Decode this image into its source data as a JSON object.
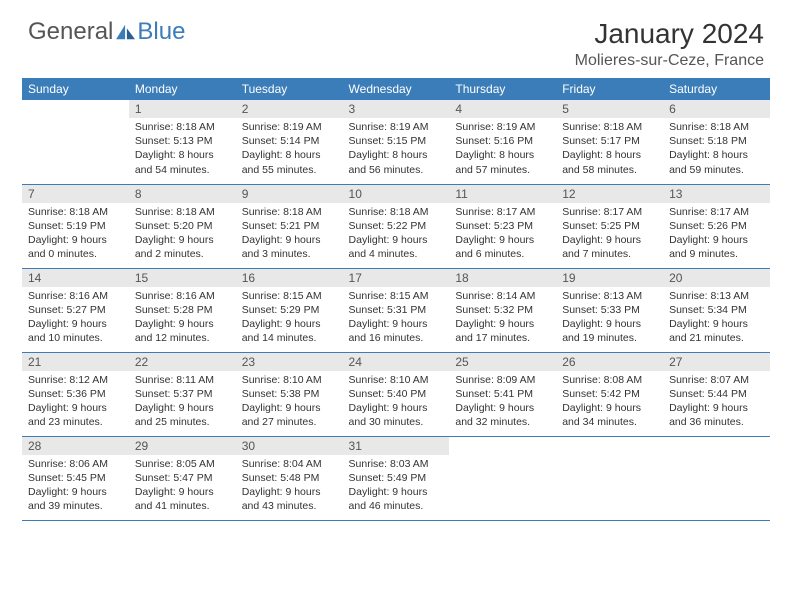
{
  "brand": {
    "text1": "General",
    "text2": "Blue"
  },
  "colors": {
    "header_bg": "#3b7db8",
    "header_text": "#ffffff",
    "dayrow_bg": "#e8e8e8",
    "rule": "#3b7db8",
    "body_text": "#333333",
    "location_text": "#555555",
    "page_bg": "#ffffff"
  },
  "typography": {
    "month_title_pt": 28,
    "location_pt": 16,
    "weekday_pt": 12,
    "daynum_pt": 12,
    "body_pt": 10.5,
    "font_family": "Arial"
  },
  "title": "January 2024",
  "location": "Molieres-sur-Ceze, France",
  "weekdays": [
    "Sunday",
    "Monday",
    "Tuesday",
    "Wednesday",
    "Thursday",
    "Friday",
    "Saturday"
  ],
  "layout": {
    "first_weekday_index": 1,
    "rows": 5,
    "cols": 7
  },
  "days": [
    {
      "n": 1,
      "sunrise": "8:18 AM",
      "sunset": "5:13 PM",
      "daylight": "8 hours and 54 minutes."
    },
    {
      "n": 2,
      "sunrise": "8:19 AM",
      "sunset": "5:14 PM",
      "daylight": "8 hours and 55 minutes."
    },
    {
      "n": 3,
      "sunrise": "8:19 AM",
      "sunset": "5:15 PM",
      "daylight": "8 hours and 56 minutes."
    },
    {
      "n": 4,
      "sunrise": "8:19 AM",
      "sunset": "5:16 PM",
      "daylight": "8 hours and 57 minutes."
    },
    {
      "n": 5,
      "sunrise": "8:18 AM",
      "sunset": "5:17 PM",
      "daylight": "8 hours and 58 minutes."
    },
    {
      "n": 6,
      "sunrise": "8:18 AM",
      "sunset": "5:18 PM",
      "daylight": "8 hours and 59 minutes."
    },
    {
      "n": 7,
      "sunrise": "8:18 AM",
      "sunset": "5:19 PM",
      "daylight": "9 hours and 0 minutes."
    },
    {
      "n": 8,
      "sunrise": "8:18 AM",
      "sunset": "5:20 PM",
      "daylight": "9 hours and 2 minutes."
    },
    {
      "n": 9,
      "sunrise": "8:18 AM",
      "sunset": "5:21 PM",
      "daylight": "9 hours and 3 minutes."
    },
    {
      "n": 10,
      "sunrise": "8:18 AM",
      "sunset": "5:22 PM",
      "daylight": "9 hours and 4 minutes."
    },
    {
      "n": 11,
      "sunrise": "8:17 AM",
      "sunset": "5:23 PM",
      "daylight": "9 hours and 6 minutes."
    },
    {
      "n": 12,
      "sunrise": "8:17 AM",
      "sunset": "5:25 PM",
      "daylight": "9 hours and 7 minutes."
    },
    {
      "n": 13,
      "sunrise": "8:17 AM",
      "sunset": "5:26 PM",
      "daylight": "9 hours and 9 minutes."
    },
    {
      "n": 14,
      "sunrise": "8:16 AM",
      "sunset": "5:27 PM",
      "daylight": "9 hours and 10 minutes."
    },
    {
      "n": 15,
      "sunrise": "8:16 AM",
      "sunset": "5:28 PM",
      "daylight": "9 hours and 12 minutes."
    },
    {
      "n": 16,
      "sunrise": "8:15 AM",
      "sunset": "5:29 PM",
      "daylight": "9 hours and 14 minutes."
    },
    {
      "n": 17,
      "sunrise": "8:15 AM",
      "sunset": "5:31 PM",
      "daylight": "9 hours and 16 minutes."
    },
    {
      "n": 18,
      "sunrise": "8:14 AM",
      "sunset": "5:32 PM",
      "daylight": "9 hours and 17 minutes."
    },
    {
      "n": 19,
      "sunrise": "8:13 AM",
      "sunset": "5:33 PM",
      "daylight": "9 hours and 19 minutes."
    },
    {
      "n": 20,
      "sunrise": "8:13 AM",
      "sunset": "5:34 PM",
      "daylight": "9 hours and 21 minutes."
    },
    {
      "n": 21,
      "sunrise": "8:12 AM",
      "sunset": "5:36 PM",
      "daylight": "9 hours and 23 minutes."
    },
    {
      "n": 22,
      "sunrise": "8:11 AM",
      "sunset": "5:37 PM",
      "daylight": "9 hours and 25 minutes."
    },
    {
      "n": 23,
      "sunrise": "8:10 AM",
      "sunset": "5:38 PM",
      "daylight": "9 hours and 27 minutes."
    },
    {
      "n": 24,
      "sunrise": "8:10 AM",
      "sunset": "5:40 PM",
      "daylight": "9 hours and 30 minutes."
    },
    {
      "n": 25,
      "sunrise": "8:09 AM",
      "sunset": "5:41 PM",
      "daylight": "9 hours and 32 minutes."
    },
    {
      "n": 26,
      "sunrise": "8:08 AM",
      "sunset": "5:42 PM",
      "daylight": "9 hours and 34 minutes."
    },
    {
      "n": 27,
      "sunrise": "8:07 AM",
      "sunset": "5:44 PM",
      "daylight": "9 hours and 36 minutes."
    },
    {
      "n": 28,
      "sunrise": "8:06 AM",
      "sunset": "5:45 PM",
      "daylight": "9 hours and 39 minutes."
    },
    {
      "n": 29,
      "sunrise": "8:05 AM",
      "sunset": "5:47 PM",
      "daylight": "9 hours and 41 minutes."
    },
    {
      "n": 30,
      "sunrise": "8:04 AM",
      "sunset": "5:48 PM",
      "daylight": "9 hours and 43 minutes."
    },
    {
      "n": 31,
      "sunrise": "8:03 AM",
      "sunset": "5:49 PM",
      "daylight": "9 hours and 46 minutes."
    }
  ],
  "labels": {
    "sunrise": "Sunrise:",
    "sunset": "Sunset:",
    "daylight": "Daylight:"
  }
}
